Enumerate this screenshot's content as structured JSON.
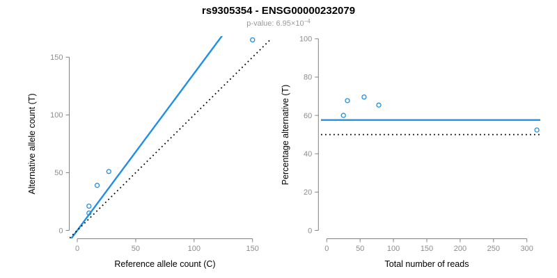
{
  "title": "rs9305354 - ENSG00000232079",
  "subtitle": {
    "prefix": "p-value: ",
    "base": "6.95×10",
    "exponent": "−4"
  },
  "colors": {
    "accent_blue": "#1e8fe3",
    "line_black": "#000000",
    "axis_gray": "#808080",
    "tick_label_gray": "#8c8c8c",
    "background": "#ffffff"
  },
  "chart_data": [
    {
      "type": "scatter",
      "panel": "left",
      "xlabel": "Reference allele count (C)",
      "ylabel": "Alternative allele count (T)",
      "xticks": [
        0,
        50,
        100,
        150
      ],
      "yticks": [
        0,
        50,
        100,
        150
      ],
      "xlim": [
        0,
        165
      ],
      "ylim": [
        0,
        168
      ],
      "grid": false,
      "legend": null,
      "marker": "open-circle",
      "points": [
        {
          "x": 10,
          "y": 15
        },
        {
          "x": 10,
          "y": 21
        },
        {
          "x": 17,
          "y": 39
        },
        {
          "x": 27,
          "y": 51
        },
        {
          "x": 150,
          "y": 165
        }
      ],
      "ablines": [
        {
          "name": "fitted-allelic-ratio-line",
          "slope": 1.36,
          "intercept": 0,
          "style": "solid",
          "color": "blue"
        },
        {
          "name": "identity-line",
          "slope": 1,
          "intercept": 0,
          "style": "dotted",
          "color": "black"
        }
      ]
    },
    {
      "type": "scatter",
      "panel": "right",
      "xlabel": "Total number of reads",
      "ylabel": "Percentage alternative (T)",
      "xticks": [
        0,
        50,
        100,
        150,
        200,
        250,
        300
      ],
      "yticks": [
        0,
        20,
        40,
        60,
        80,
        100
      ],
      "xlim": [
        0,
        320
      ],
      "ylim": [
        0,
        100
      ],
      "grid": false,
      "legend": null,
      "marker": "open-circle",
      "points": [
        {
          "x": 25,
          "y": 60.0
        },
        {
          "x": 31,
          "y": 67.7
        },
        {
          "x": 56,
          "y": 69.6
        },
        {
          "x": 78,
          "y": 65.4
        },
        {
          "x": 315,
          "y": 52.4
        }
      ],
      "ablines": [
        {
          "name": "mean-percentage-line",
          "slope": 0,
          "intercept": 57.6,
          "style": "solid",
          "color": "blue"
        },
        {
          "name": "fifty-percent-line",
          "slope": 0,
          "intercept": 50,
          "style": "dotted",
          "color": "black"
        }
      ]
    }
  ]
}
